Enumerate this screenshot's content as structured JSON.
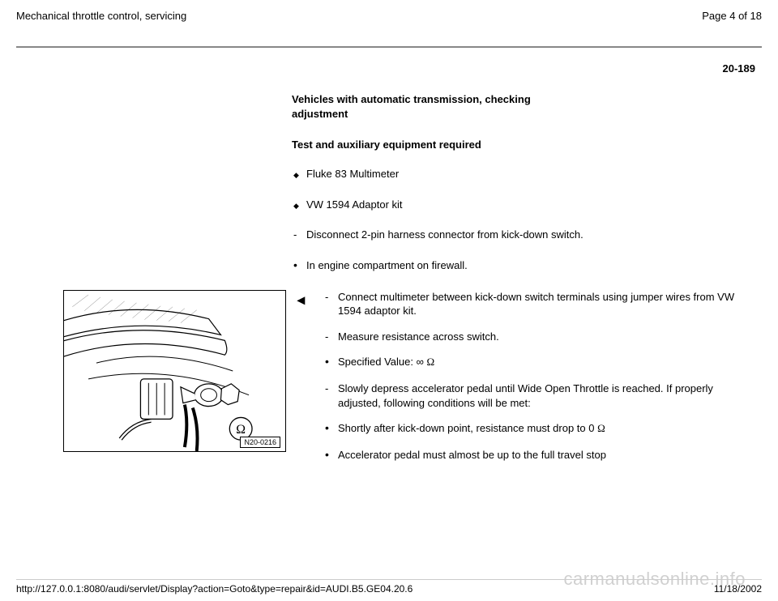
{
  "header": {
    "title": "Mechanical throttle control, servicing",
    "page_label": "Page 4 of 18"
  },
  "page_code": "20-189",
  "upper": {
    "heading": "Vehicles with automatic transmission, checking adjustment",
    "subheading": "Test and auxiliary equipment required",
    "items": [
      {
        "marker": "diamond",
        "text": "Fluke 83 Multimeter"
      },
      {
        "marker": "diamond",
        "text": "VW 1594 Adaptor kit"
      },
      {
        "marker": "dash",
        "text": "Disconnect 2-pin harness connector from kick-down switch."
      },
      {
        "marker": "bullet",
        "text": "In engine compartment on firewall."
      }
    ]
  },
  "pointer": "◂",
  "figure": {
    "label": "N20-0216"
  },
  "lower": {
    "items": [
      {
        "marker": "dash",
        "text": "Connect multimeter between kick-down switch terminals using jumper wires from VW 1594 adaptor kit."
      },
      {
        "marker": "dash",
        "text": "Measure resistance across switch."
      },
      {
        "marker": "bullet",
        "text": "Specified Value:  ∞  Ω",
        "ohm": true
      },
      {
        "marker": "dash",
        "text": "Slowly depress accelerator pedal until Wide Open Throttle is reached. If properly adjusted, following conditions will be met:"
      },
      {
        "marker": "bullet",
        "text": "Shortly after kick-down point, resistance must drop to 0  Ω",
        "ohm": true
      },
      {
        "marker": "bullet",
        "text": "Accelerator pedal must almost be up to the full travel stop"
      }
    ]
  },
  "footer": {
    "url": "http://127.0.0.1:8080/audi/servlet/Display?action=Goto&type=repair&id=AUDI.B5.GE04.20.6",
    "date": "11/18/2002"
  },
  "watermark": "carmanualsonline.info"
}
